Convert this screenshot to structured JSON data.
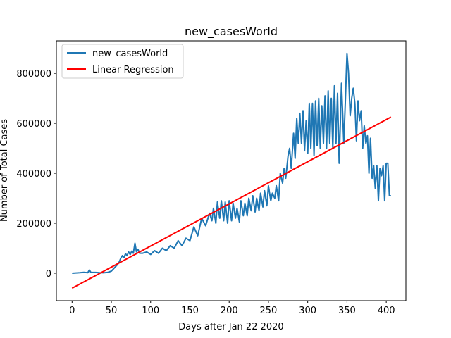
{
  "chart_data": {
    "type": "line",
    "title": "new_casesWorld",
    "xlabel": "Days after Jan 22 2020",
    "ylabel": "Number of Total Cases",
    "xlim": [
      -20,
      425
    ],
    "ylim": [
      -110000,
      930000
    ],
    "x_ticks": [
      0,
      50,
      100,
      150,
      200,
      250,
      300,
      350,
      400
    ],
    "y_ticks": [
      0,
      200000,
      400000,
      600000,
      800000
    ],
    "grid": false,
    "legend_position": "upper-left",
    "series": [
      {
        "name": "new_casesWorld",
        "color": "#1f77b4",
        "points": [
          [
            0,
            0
          ],
          [
            5,
            1000
          ],
          [
            10,
            2000
          ],
          [
            15,
            3500
          ],
          [
            20,
            2000
          ],
          [
            22,
            13000
          ],
          [
            24,
            3000
          ],
          [
            30,
            3000
          ],
          [
            35,
            2000
          ],
          [
            40,
            1500
          ],
          [
            45,
            3000
          ],
          [
            50,
            8000
          ],
          [
            55,
            25000
          ],
          [
            58,
            35000
          ],
          [
            60,
            45000
          ],
          [
            62,
            60000
          ],
          [
            64,
            70000
          ],
          [
            66,
            62000
          ],
          [
            68,
            78000
          ],
          [
            70,
            70000
          ],
          [
            72,
            85000
          ],
          [
            74,
            75000
          ],
          [
            76,
            88000
          ],
          [
            78,
            80000
          ],
          [
            80,
            120000
          ],
          [
            82,
            85000
          ],
          [
            84,
            95000
          ],
          [
            86,
            80000
          ],
          [
            90,
            80000
          ],
          [
            95,
            85000
          ],
          [
            100,
            75000
          ],
          [
            105,
            90000
          ],
          [
            110,
            80000
          ],
          [
            115,
            100000
          ],
          [
            120,
            90000
          ],
          [
            125,
            110000
          ],
          [
            130,
            100000
          ],
          [
            135,
            130000
          ],
          [
            140,
            110000
          ],
          [
            145,
            140000
          ],
          [
            150,
            130000
          ],
          [
            155,
            185000
          ],
          [
            160,
            150000
          ],
          [
            165,
            220000
          ],
          [
            170,
            190000
          ],
          [
            175,
            240000
          ],
          [
            178,
            210000
          ],
          [
            180,
            260000
          ],
          [
            183,
            200000
          ],
          [
            185,
            285000
          ],
          [
            188,
            220000
          ],
          [
            190,
            290000
          ],
          [
            193,
            210000
          ],
          [
            195,
            285000
          ],
          [
            198,
            200000
          ],
          [
            200,
            290000
          ],
          [
            203,
            210000
          ],
          [
            205,
            280000
          ],
          [
            208,
            220000
          ],
          [
            210,
            260000
          ],
          [
            213,
            205000
          ],
          [
            215,
            290000
          ],
          [
            218,
            230000
          ],
          [
            220,
            280000
          ],
          [
            223,
            230000
          ],
          [
            225,
            300000
          ],
          [
            228,
            250000
          ],
          [
            230,
            310000
          ],
          [
            233,
            245000
          ],
          [
            235,
            300000
          ],
          [
            238,
            250000
          ],
          [
            240,
            320000
          ],
          [
            243,
            265000
          ],
          [
            245,
            330000
          ],
          [
            248,
            270000
          ],
          [
            250,
            350000
          ],
          [
            253,
            290000
          ],
          [
            255,
            320000
          ],
          [
            258,
            300000
          ],
          [
            260,
            350000
          ],
          [
            263,
            290000
          ],
          [
            265,
            400000
          ],
          [
            268,
            360000
          ],
          [
            270,
            420000
          ],
          [
            272,
            380000
          ],
          [
            275,
            470000
          ],
          [
            277,
            500000
          ],
          [
            279,
            420000
          ],
          [
            282,
            560000
          ],
          [
            284,
            460000
          ],
          [
            286,
            620000
          ],
          [
            288,
            520000
          ],
          [
            290,
            640000
          ],
          [
            292,
            520000
          ],
          [
            294,
            650000
          ],
          [
            296,
            490000
          ],
          [
            298,
            610000
          ],
          [
            300,
            480000
          ],
          [
            302,
            680000
          ],
          [
            304,
            500000
          ],
          [
            306,
            680000
          ],
          [
            308,
            470000
          ],
          [
            310,
            690000
          ],
          [
            312,
            510000
          ],
          [
            314,
            700000
          ],
          [
            316,
            500000
          ],
          [
            318,
            670000
          ],
          [
            320,
            520000
          ],
          [
            322,
            710000
          ],
          [
            324,
            500000
          ],
          [
            326,
            730000
          ],
          [
            328,
            520000
          ],
          [
            330,
            700000
          ],
          [
            332,
            500000
          ],
          [
            334,
            750000
          ],
          [
            336,
            520000
          ],
          [
            338,
            720000
          ],
          [
            340,
            440000
          ],
          [
            343,
            760000
          ],
          [
            346,
            520000
          ],
          [
            348,
            700000
          ],
          [
            350,
            880000
          ],
          [
            352,
            800000
          ],
          [
            354,
            630000
          ],
          [
            356,
            700000
          ],
          [
            358,
            740000
          ],
          [
            360,
            680000
          ],
          [
            362,
            530000
          ],
          [
            364,
            690000
          ],
          [
            366,
            610000
          ],
          [
            368,
            650000
          ],
          [
            370,
            500000
          ],
          [
            372,
            590000
          ],
          [
            374,
            520000
          ],
          [
            376,
            550000
          ],
          [
            378,
            400000
          ],
          [
            380,
            540000
          ],
          [
            382,
            380000
          ],
          [
            384,
            430000
          ],
          [
            386,
            340000
          ],
          [
            388,
            430000
          ],
          [
            390,
            290000
          ],
          [
            392,
            420000
          ],
          [
            394,
            390000
          ],
          [
            396,
            430000
          ],
          [
            398,
            290000
          ],
          [
            400,
            440000
          ],
          [
            402,
            440000
          ],
          [
            404,
            310000
          ],
          [
            406,
            310000
          ]
        ]
      },
      {
        "name": "Linear Regression",
        "color": "#ff0000",
        "points": [
          [
            0,
            -60000
          ],
          [
            406,
            625000
          ]
        ]
      }
    ]
  }
}
